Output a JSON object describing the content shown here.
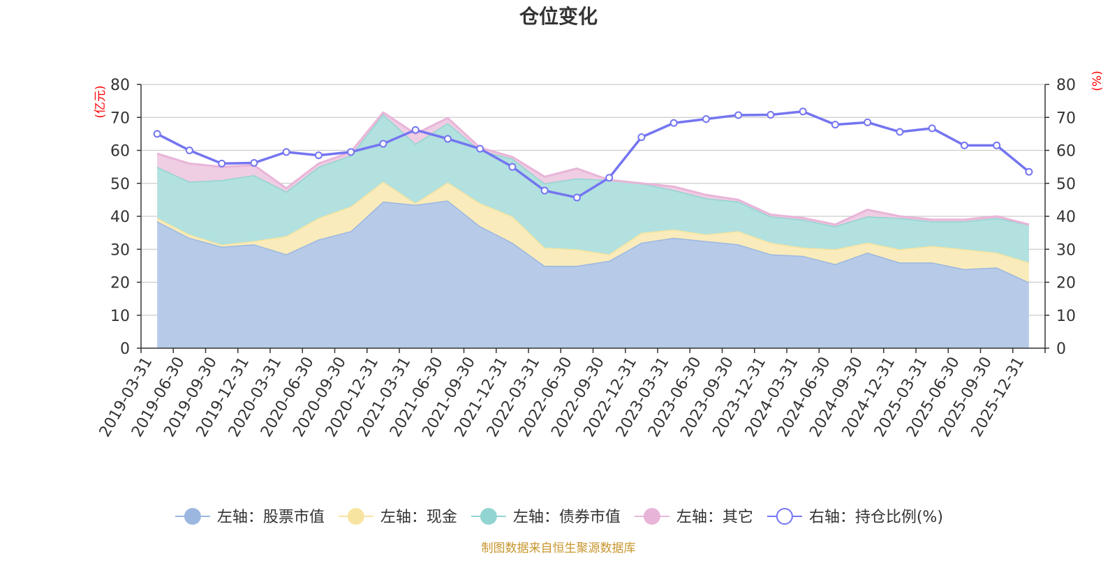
{
  "chart_data": {
    "type": "area",
    "title": "仓位变化",
    "left_axis_unit": "(亿元)",
    "right_axis_unit": "(%)",
    "left_ylim": [
      0,
      80
    ],
    "right_ylim": [
      0,
      80
    ],
    "left_ticks": [
      0,
      10,
      20,
      30,
      40,
      50,
      60,
      70,
      80
    ],
    "right_ticks": [
      0,
      10,
      20,
      30,
      40,
      50,
      60,
      70,
      80
    ],
    "categories": [
      "2019-03-31",
      "2019-06-30",
      "2019-09-30",
      "2019-12-31",
      "2020-03-31",
      "2020-06-30",
      "2020-09-30",
      "2020-12-31",
      "2021-03-31",
      "2021-06-30",
      "2021-09-30",
      "2021-12-31",
      "2022-03-31",
      "2022-06-30",
      "2022-09-30",
      "2022-12-31",
      "2023-03-31",
      "2023-06-30",
      "2023-09-30",
      "2023-12-31",
      "2024-03-31",
      "2024-06-30",
      "2024-09-30",
      "2024-12-31",
      "2025-03-31",
      "2025-06-30",
      "2025-09-30",
      "2025-12-31"
    ],
    "stacked_series": [
      {
        "name": "左轴：股票市值",
        "color": "#9bb7e0",
        "fill": "#b7cbe9",
        "values": [
          38.5,
          33.5,
          30.8,
          31.5,
          28.5,
          33.0,
          35.5,
          44.5,
          43.5,
          44.8,
          37.0,
          32.0,
          25.0,
          25.0,
          26.5,
          32.0,
          33.5,
          32.5,
          31.5,
          28.5,
          28.0,
          25.5,
          29.0,
          26.0,
          26.0,
          24.0,
          24.5,
          20.0
        ]
      },
      {
        "name": "左轴：现金",
        "color": "#f6e4a0",
        "fill": "#f9ebbb",
        "values": [
          1.0,
          1.0,
          0.6,
          1.0,
          5.5,
          6.5,
          7.5,
          6.0,
          0.5,
          5.5,
          7.0,
          8.0,
          5.5,
          5.0,
          2.0,
          3.0,
          2.5,
          2.0,
          4.0,
          3.5,
          2.5,
          4.5,
          3.0,
          4.0,
          5.0,
          6.0,
          4.5,
          6.0
        ]
      },
      {
        "name": "左轴：债券市值",
        "color": "#92d4d1",
        "fill": "#b2e1df",
        "values": [
          15.5,
          16.0,
          19.6,
          20.0,
          13.5,
          15.5,
          15.5,
          20.5,
          18.0,
          18.0,
          16.0,
          17.5,
          19.5,
          21.5,
          22.5,
          15.0,
          12.0,
          11.0,
          9.0,
          8.0,
          8.5,
          7.0,
          8.0,
          9.5,
          7.5,
          8.5,
          10.5,
          11.5
        ]
      },
      {
        "name": "左轴：其它",
        "color": "#e8b5d8",
        "fill": "#efcde3",
        "values": [
          4.0,
          5.5,
          4.0,
          3.0,
          1.0,
          1.0,
          1.0,
          0.5,
          3.0,
          1.5,
          0.8,
          0.5,
          2.0,
          3.0,
          0.0,
          0.0,
          1.0,
          1.0,
          0.5,
          0.5,
          0.5,
          0.5,
          2.0,
          0.5,
          0.5,
          0.5,
          0.5,
          0.0
        ]
      }
    ],
    "line_series": {
      "name": "右轴：持仓比例(%)",
      "color": "#7475f0",
      "axis": "right",
      "values": [
        65.0,
        60.0,
        56.0,
        56.2,
        59.5,
        58.5,
        59.5,
        62.0,
        66.2,
        63.5,
        60.5,
        55.0,
        47.8,
        45.7,
        51.7,
        64.0,
        68.3,
        69.5,
        70.7,
        70.8,
        71.8,
        67.8,
        68.5,
        65.6,
        66.7,
        61.5,
        61.5,
        53.5
      ]
    },
    "legend": [
      {
        "label": "左轴：股票市值",
        "color": "#9bb7e0",
        "symbol": "filled"
      },
      {
        "label": "左轴：现金",
        "color": "#f6e4a0",
        "symbol": "filled"
      },
      {
        "label": "左轴：债券市值",
        "color": "#92d4d1",
        "symbol": "filled"
      },
      {
        "label": "左轴：其它",
        "color": "#e8b5d8",
        "symbol": "filled"
      },
      {
        "label": "右轴：持仓比例(%)",
        "color": "#7475f0",
        "symbol": "hollow"
      }
    ],
    "legend_position": "bottom-center",
    "source_note": "制图数据来自恒生聚源数据库",
    "grid": true
  }
}
